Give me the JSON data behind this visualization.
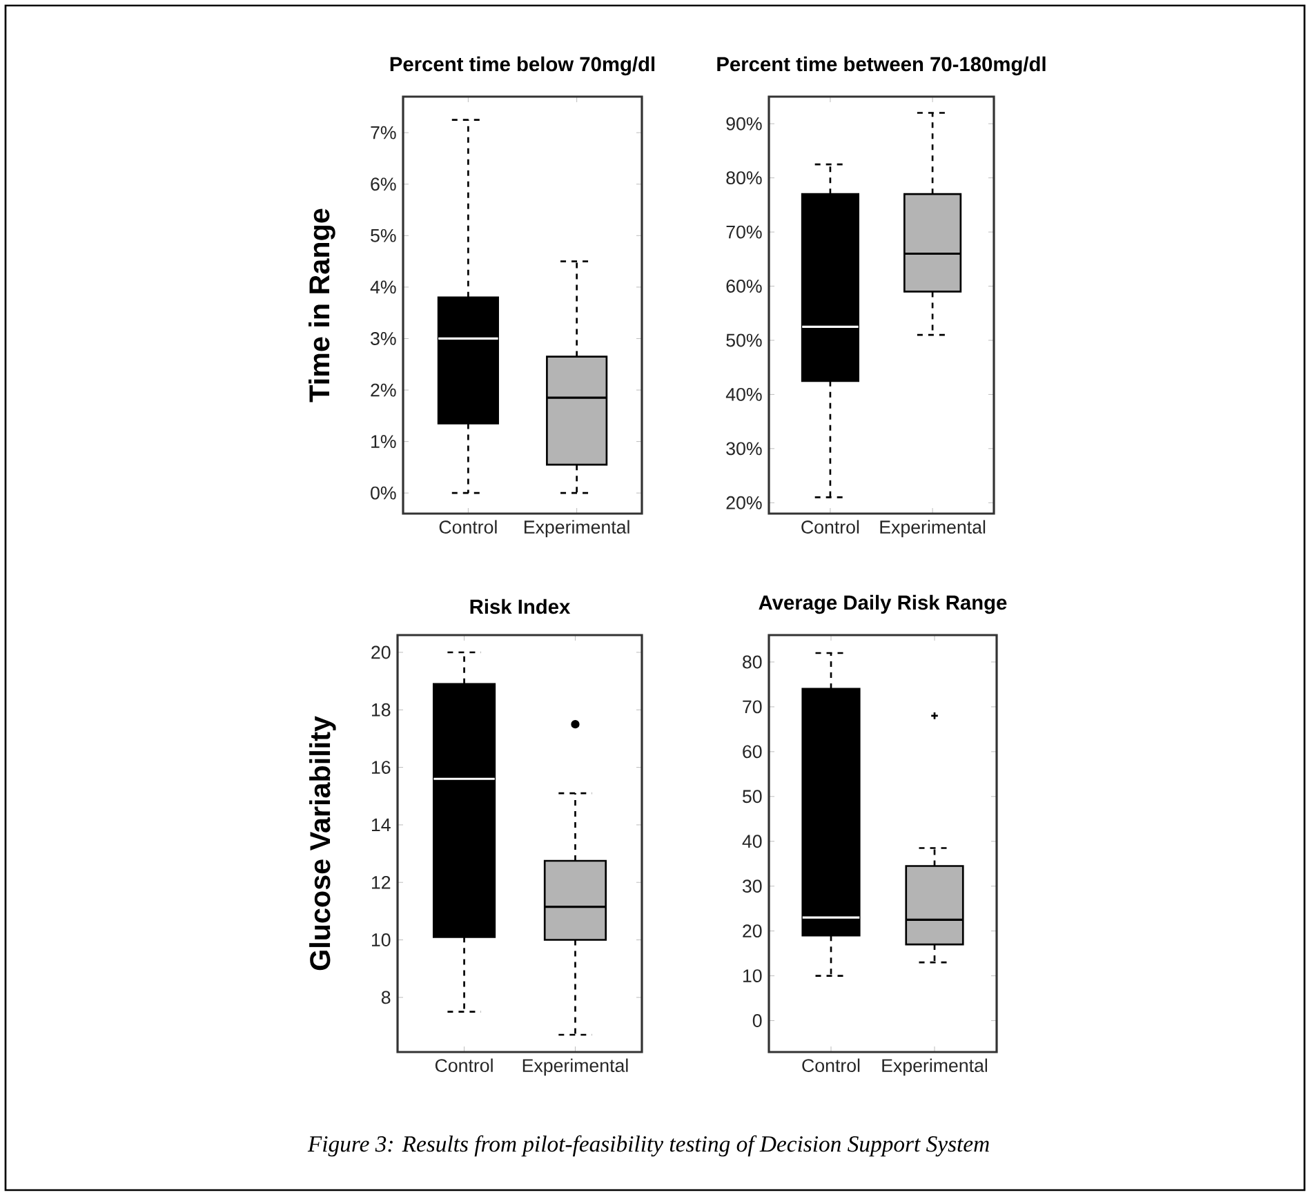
{
  "chart_data": [
    {
      "type": "box",
      "title": "Percent time below 70mg/dl",
      "ylabel": "Time in Range",
      "categories": [
        "Control",
        "Experimental"
      ],
      "colors": [
        "#000000",
        "#b4b4b4"
      ],
      "boxes": [
        {
          "low": 0,
          "q1": 1.35,
          "median": 3.0,
          "q3": 3.8,
          "high": 7.25
        },
        {
          "low": 0,
          "q1": 0.55,
          "median": 1.85,
          "q3": 2.65,
          "high": 4.5
        }
      ],
      "ylim": [
        -0.4,
        7.7
      ],
      "yticks": [
        {
          "value": 0,
          "label": "0%"
        },
        {
          "value": 1,
          "label": "1%"
        },
        {
          "value": 2,
          "label": "2%"
        },
        {
          "value": 3,
          "label": "3%"
        },
        {
          "value": 4,
          "label": "4%"
        },
        {
          "value": 5,
          "label": "5%"
        },
        {
          "value": 6,
          "label": "6%"
        },
        {
          "value": 7,
          "label": "7%"
        }
      ]
    },
    {
      "type": "box",
      "title": "Percent time between 70-180mg/dl",
      "categories": [
        "Control",
        "Experimental"
      ],
      "colors": [
        "#000000",
        "#b4b4b4"
      ],
      "boxes": [
        {
          "low": 21,
          "q1": 42.5,
          "median": 52.5,
          "q3": 77,
          "high": 82.5
        },
        {
          "low": 51,
          "q1": 59,
          "median": 66,
          "q3": 77,
          "high": 92
        }
      ],
      "ylim": [
        18,
        95
      ],
      "yticks": [
        {
          "value": 20,
          "label": "20%"
        },
        {
          "value": 30,
          "label": "30%"
        },
        {
          "value": 40,
          "label": "40%"
        },
        {
          "value": 50,
          "label": "50%"
        },
        {
          "value": 60,
          "label": "60%"
        },
        {
          "value": 70,
          "label": "70%"
        },
        {
          "value": 80,
          "label": "80%"
        },
        {
          "value": 90,
          "label": "90%"
        }
      ]
    },
    {
      "type": "box",
      "title": "Risk Index",
      "ylabel": "Glucose Variability",
      "categories": [
        "Control",
        "Experimental"
      ],
      "colors": [
        "#000000",
        "#b4b4b4"
      ],
      "marker": "circle",
      "boxes": [
        {
          "low": 7.5,
          "q1": 10.1,
          "median": 15.6,
          "q3": 18.9,
          "high": 20
        },
        {
          "low": 6.7,
          "q1": 10,
          "median": 11.15,
          "q3": 12.75,
          "high": 15.1,
          "outliers": [
            17.5
          ]
        }
      ],
      "ylim": [
        6.1,
        20.6
      ],
      "yticks": [
        8,
        10,
        12,
        14,
        16,
        18,
        20
      ]
    },
    {
      "type": "box",
      "title": "Average Daily Risk Range",
      "categories": [
        "Control",
        "Experimental"
      ],
      "colors": [
        "#000000",
        "#b4b4b4"
      ],
      "marker": "cross",
      "boxes": [
        {
          "low": 10,
          "q1": 19,
          "median": 23,
          "q3": 74,
          "high": 82
        },
        {
          "low": 13,
          "q1": 17,
          "median": 22.5,
          "q3": 34.5,
          "high": 38.5,
          "outliers": [
            68
          ]
        }
      ],
      "ylim": [
        -7,
        86
      ],
      "yticks": [
        0,
        10,
        20,
        30,
        40,
        50,
        60,
        70,
        80
      ],
      "annotations": [
        "Figure 3: Results from pilot-feasibility testing of Decision Support System"
      ]
    }
  ]
}
